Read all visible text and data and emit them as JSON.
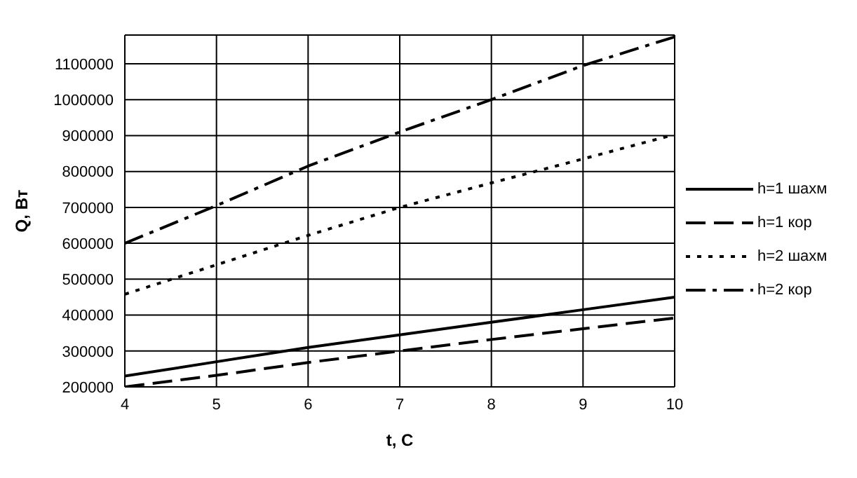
{
  "chart_data": {
    "type": "line",
    "xlabel": "t, C",
    "ylabel": "Q, Вт",
    "x": [
      4,
      5,
      6,
      7,
      8,
      9,
      10
    ],
    "series": [
      {
        "name": "h=1 шахм",
        "color": "#000000",
        "line_style": "solid",
        "values": [
          230000,
          270000,
          310000,
          345000,
          380000,
          415000,
          450000
        ]
      },
      {
        "name": "h=1 кор",
        "color": "#000000",
        "line_style": "dashed",
        "values": [
          200000,
          232000,
          268000,
          300000,
          332000,
          362000,
          392000
        ]
      },
      {
        "name": "h=2 шахм",
        "color": "#000000",
        "line_style": "dotted",
        "values": [
          458000,
          540000,
          622000,
          700000,
          768000,
          835000,
          903000
        ]
      },
      {
        "name": "h=2 кор",
        "color": "#000000",
        "line_style": "dashdot",
        "values": [
          600000,
          705000,
          815000,
          910000,
          1000000,
          1095000,
          1175000
        ]
      }
    ],
    "xlim": [
      4,
      10
    ],
    "xticks": [
      4,
      5,
      6,
      7,
      8,
      9,
      10
    ],
    "ylim": [
      200000,
      1180000
    ],
    "yticks": [
      200000,
      300000,
      400000,
      500000,
      600000,
      700000,
      800000,
      900000,
      1000000,
      1100000
    ],
    "grid": true,
    "legend": "right",
    "marker": "none"
  }
}
